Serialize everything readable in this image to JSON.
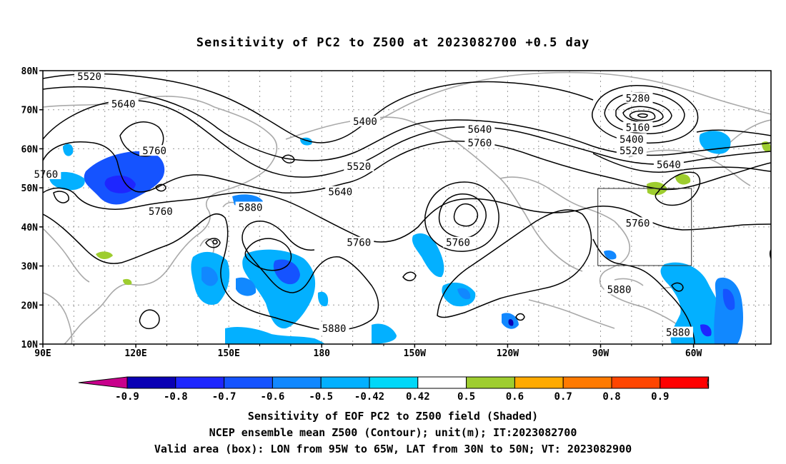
{
  "title": "Sensitivity of PC2 to Z500 at 2023082700 +0.5 day",
  "map": {
    "lat_labels": [
      "80N",
      "70N",
      "60N",
      "50N",
      "40N",
      "30N",
      "20N",
      "10N"
    ],
    "lon_labels": [
      "90E",
      "120E",
      "150E",
      "180",
      "150W",
      "120W",
      "90W",
      "60W"
    ],
    "contour_labels": [
      {
        "text": "5520",
        "lon": 105,
        "lat": 78.5
      },
      {
        "text": "5640",
        "lon": 116,
        "lat": 71.5
      },
      {
        "text": "5760",
        "lon": 126,
        "lat": 59.5
      },
      {
        "text": "5760",
        "lon": 91,
        "lat": 53.5
      },
      {
        "text": "5760",
        "lon": 128,
        "lat": 44
      },
      {
        "text": "5880",
        "lon": 157,
        "lat": 45
      },
      {
        "text": "5400",
        "lon": 194,
        "lat": 67
      },
      {
        "text": "5520",
        "lon": 192,
        "lat": 55.5
      },
      {
        "text": "5640",
        "lon": 186,
        "lat": 49
      },
      {
        "text": "5760",
        "lon": 192,
        "lat": 36
      },
      {
        "text": "5640",
        "lon": 231,
        "lat": 65
      },
      {
        "text": "5760",
        "lon": 231,
        "lat": 61.5
      },
      {
        "text": "5760",
        "lon": 224,
        "lat": 36
      },
      {
        "text": "5880",
        "lon": 276,
        "lat": 24
      },
      {
        "text": "5880",
        "lon": 184,
        "lat": 14
      },
      {
        "text": "5280",
        "lon": 282,
        "lat": 73
      },
      {
        "text": "5160",
        "lon": 282,
        "lat": 65.5
      },
      {
        "text": "5400",
        "lon": 280,
        "lat": 62.5
      },
      {
        "text": "5520",
        "lon": 280,
        "lat": 59.5
      },
      {
        "text": "5640",
        "lon": 292,
        "lat": 56
      },
      {
        "text": "5760",
        "lon": 282,
        "lat": 41
      },
      {
        "text": "5880",
        "lon": 295,
        "lat": 13
      }
    ]
  },
  "colorbar": {
    "labels": [
      "-0.9",
      "-0.8",
      "-0.7",
      "-0.6",
      "-0.5",
      "-0.42",
      "0.42",
      "0.5",
      "0.6",
      "0.7",
      "0.8",
      "0.9"
    ],
    "colors": [
      "#0a00b4",
      "#1e26ff",
      "#1553ff",
      "#1188ff",
      "#03b0ff",
      "#01d8f8",
      "#ffffff",
      "#9ecd2f",
      "#ffaa00",
      "#ff7a00",
      "#ff4500",
      "#ff0000"
    ],
    "left_end_color": "#c8008c",
    "right_end_color": "#ff9ec8"
  },
  "caption": {
    "line1": "Sensitivity of EOF PC2 to Z500 field (Shaded)",
    "line2": "NCEP ensemble mean Z500 (Contour); unit(m); IT:2023082700",
    "line3": "Valid area (box): LON from 95W to 65W, LAT from 30N to 50N; VT: 2023082900"
  }
}
